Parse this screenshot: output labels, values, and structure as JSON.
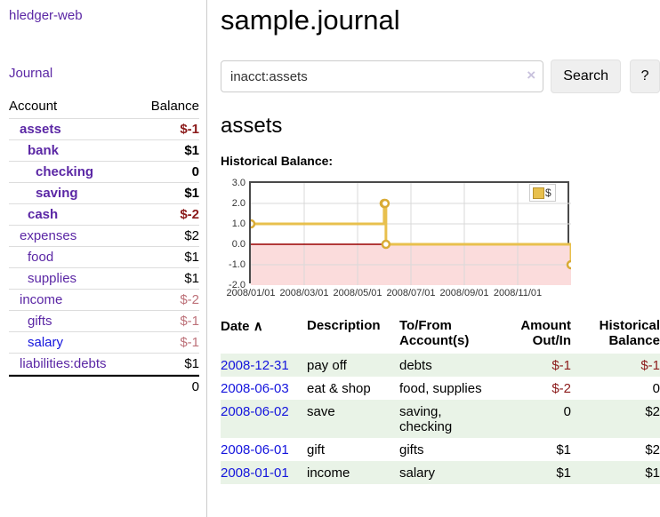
{
  "colors": {
    "purple_link": "#5b27a5",
    "blue_link": "#1414dd",
    "negative_strong": "#8b1a1a",
    "negative_soft": "#bd7179",
    "row_stripe_green": "#e9f3e7",
    "chart_line_gold": "#e8c04d",
    "chart_marker_ring": "#d9ab35",
    "chart_negative_fill": "#fbdcdc",
    "chart_zero_line": "#990000",
    "chart_grid": "#d9d9d9",
    "chart_border": "#4a4a4a",
    "button_bg": "#efefef"
  },
  "sidebar": {
    "brand": "hledger-web",
    "journal_link": "Journal",
    "accounts": {
      "headers": {
        "account": "Account",
        "balance": "Balance"
      },
      "rows": [
        {
          "account": "assets",
          "depth": 0,
          "bold": true,
          "balance": "$-1",
          "neg": "strong"
        },
        {
          "account": "bank",
          "depth": 1,
          "bold": true,
          "balance": "$1",
          "neg": "none"
        },
        {
          "account": "checking",
          "depth": 2,
          "bold": true,
          "balance": "0",
          "neg": "none"
        },
        {
          "account": "saving",
          "depth": 2,
          "bold": true,
          "balance": "$1",
          "neg": "none"
        },
        {
          "account": "cash",
          "depth": 1,
          "bold": true,
          "balance": "$-2",
          "neg": "strong"
        },
        {
          "account": "expenses",
          "depth": 0,
          "bold": false,
          "balance": "$2",
          "neg": "none"
        },
        {
          "account": "food",
          "depth": 1,
          "bold": false,
          "balance": "$1",
          "neg": "none"
        },
        {
          "account": "supplies",
          "depth": 1,
          "bold": false,
          "balance": "$1",
          "neg": "none"
        },
        {
          "account": "income",
          "depth": 0,
          "bold": false,
          "balance": "$-2",
          "neg": "soft"
        },
        {
          "account": "gifts",
          "depth": 1,
          "bold": false,
          "balance": "$-1",
          "neg": "soft"
        },
        {
          "account": "salary",
          "depth": 1,
          "bold": false,
          "balance": "$-1",
          "neg": "soft",
          "blue": true
        },
        {
          "account": "liabilities:debts",
          "depth": 0,
          "bold": false,
          "balance": "$1",
          "neg": "none"
        }
      ],
      "total": "0"
    }
  },
  "main": {
    "title": "sample.journal",
    "search": {
      "value": "inacct:assets",
      "clear_icon": "×",
      "button": "Search",
      "help": "?"
    },
    "account_heading": "assets",
    "chart_title": "Historical Balance:"
  },
  "chart_data": {
    "type": "line",
    "step": true,
    "title": "Historical Balance",
    "legend": [
      {
        "label": "$"
      }
    ],
    "ylim": [
      -2,
      3
    ],
    "yticks": [
      {
        "label": "3.0",
        "value": 3
      },
      {
        "label": "2.0",
        "value": 2
      },
      {
        "label": "1.0",
        "value": 1
      },
      {
        "label": "0.0",
        "value": 0
      },
      {
        "label": "-1.0",
        "value": -1
      },
      {
        "label": "-2.0",
        "value": -2
      }
    ],
    "xticks": [
      "2008/01/01",
      "2008/03/01",
      "2008/05/01",
      "2008/07/01",
      "2008/09/01",
      "2008/11/01"
    ],
    "x_range_days": 365,
    "points": [
      {
        "date": "2008-01-01",
        "day": 0,
        "value": 1
      },
      {
        "date": "2008-06-01",
        "day": 152,
        "value": 2
      },
      {
        "date": "2008-06-02",
        "day": 153,
        "value": 2
      },
      {
        "date": "2008-06-03",
        "day": 154,
        "value": 0
      },
      {
        "date": "2008-12-31",
        "day": 365,
        "value": -1
      }
    ],
    "negative_region_shaded": true,
    "grid": true,
    "legend_position": "top-right"
  },
  "register": {
    "headers": {
      "date": "Date",
      "sort_indicator": "∧",
      "description": "Description",
      "accounts": "To/From Account(s)",
      "amount": "Amount Out/In",
      "balance": "Historical Balance"
    },
    "rows": [
      {
        "date": "2008-12-31",
        "description": "pay off",
        "accounts": "debts",
        "amount": "$-1",
        "amount_neg": true,
        "balance": "$-1",
        "balance_neg": true
      },
      {
        "date": "2008-06-03",
        "description": "eat & shop",
        "accounts": "food, supplies",
        "amount": "$-2",
        "amount_neg": true,
        "balance": "0",
        "balance_neg": false
      },
      {
        "date": "2008-06-02",
        "description": "save",
        "accounts": "saving, checking",
        "amount": "0",
        "amount_neg": false,
        "balance": "$2",
        "balance_neg": false
      },
      {
        "date": "2008-06-01",
        "description": "gift",
        "accounts": "gifts",
        "amount": "$1",
        "amount_neg": false,
        "balance": "$2",
        "balance_neg": false
      },
      {
        "date": "2008-01-01",
        "description": "income",
        "accounts": "salary",
        "amount": "$1",
        "amount_neg": false,
        "balance": "$1",
        "balance_neg": false
      }
    ]
  }
}
